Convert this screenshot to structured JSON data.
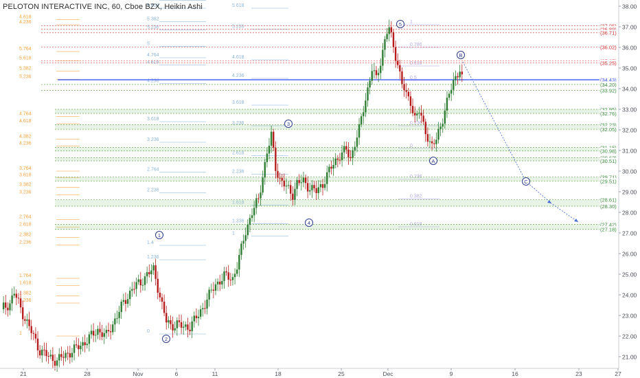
{
  "header": {
    "title": "PELOTON INTERACTIVE INC, 60, Cboe BZX, Heikin Ashi"
  },
  "colors": {
    "up": "#2e7d32",
    "down": "#b71c1c",
    "support": "#6aa84f",
    "resistance": "#e06666",
    "current": "#3d5afe",
    "projection": "#4a6fd4",
    "fib_orange": "#f6a13a",
    "fib_blue": "#8ab4d8"
  },
  "chart_data": {
    "type": "candlestick",
    "title": "PELOTON INTERACTIVE INC, 60, Cboe BZX, Heikin Ashi",
    "ylim": [
      20.5,
      38.3
    ],
    "y_ticks": [
      "21.00",
      "22.00",
      "23.00",
      "24.00",
      "25.00",
      "26.00",
      "27.00",
      "28.00",
      "29.00",
      "30.00",
      "31.00",
      "32.00",
      "33.00",
      "34.00",
      "35.00",
      "36.00",
      "37.00",
      "38.00"
    ],
    "x_ticks": [
      "21",
      "28",
      "Nov",
      "6",
      "11",
      "18",
      "25",
      "Dec",
      "9",
      "16",
      "23",
      "27"
    ],
    "price_path": [
      [
        0,
        23.3
      ],
      [
        4,
        23.6
      ],
      [
        6,
        24.1
      ],
      [
        10,
        23.1
      ],
      [
        14,
        22.2
      ],
      [
        18,
        21.3
      ],
      [
        22,
        21.0
      ],
      [
        26,
        20.8
      ],
      [
        30,
        21.1
      ],
      [
        35,
        21.4
      ],
      [
        40,
        21.8
      ],
      [
        45,
        22.3
      ],
      [
        49,
        22.0
      ],
      [
        53,
        22.8
      ],
      [
        57,
        23.6
      ],
      [
        61,
        24.3
      ],
      [
        65,
        24.6
      ],
      [
        68,
        25.0
      ],
      [
        71,
        25.2
      ],
      [
        73,
        24.4
      ],
      [
        75,
        23.5
      ],
      [
        77,
        22.7
      ],
      [
        79,
        22.5
      ],
      [
        82,
        22.6
      ],
      [
        85,
        22.4
      ],
      [
        88,
        22.5
      ],
      [
        92,
        23.0
      ],
      [
        96,
        23.8
      ],
      [
        100,
        24.5
      ],
      [
        104,
        24.9
      ],
      [
        108,
        24.8
      ],
      [
        110,
        25.4
      ],
      [
        112,
        26.2
      ],
      [
        114,
        27.1
      ],
      [
        117,
        28.0
      ],
      [
        120,
        28.6
      ],
      [
        122,
        29.8
      ],
      [
        124,
        30.9
      ],
      [
        126,
        31.7
      ],
      [
        128,
        30.2
      ],
      [
        130,
        29.6
      ],
      [
        133,
        29.2
      ],
      [
        136,
        28.9
      ],
      [
        138,
        29.4
      ],
      [
        141,
        29.5
      ],
      [
        144,
        29.2
      ],
      [
        147,
        29.0
      ],
      [
        150,
        29.4
      ],
      [
        153,
        30.0
      ],
      [
        156,
        30.5
      ],
      [
        158,
        30.8
      ],
      [
        161,
        31.0
      ],
      [
        163,
        30.6
      ],
      [
        165,
        31.4
      ],
      [
        167,
        32.0
      ],
      [
        169,
        33.0
      ],
      [
        171,
        34.0
      ],
      [
        173,
        35.0
      ],
      [
        175,
        34.4
      ],
      [
        177,
        35.3
      ],
      [
        179,
        36.4
      ],
      [
        180,
        36.8
      ],
      [
        181,
        36.9
      ],
      [
        183,
        36.0
      ],
      [
        185,
        35.2
      ],
      [
        187,
        34.3
      ],
      [
        189,
        33.6
      ],
      [
        191,
        33.4
      ],
      [
        193,
        32.6
      ],
      [
        195,
        32.9
      ],
      [
        197,
        32.2
      ],
      [
        199,
        31.7
      ],
      [
        200,
        31.4
      ],
      [
        201,
        31.2
      ],
      [
        203,
        31.5
      ],
      [
        205,
        32.2
      ],
      [
        207,
        33.0
      ],
      [
        209,
        33.7
      ],
      [
        211,
        34.3
      ],
      [
        213,
        34.8
      ],
      [
        214,
        35.0
      ],
      [
        215,
        34.5
      ]
    ],
    "waves": [
      {
        "label": "1"
      },
      {
        "label": "2"
      },
      {
        "label": "3"
      },
      {
        "label": "4"
      },
      {
        "label": "5"
      },
      {
        "label": "A"
      },
      {
        "label": "B"
      },
      {
        "label": "C"
      }
    ],
    "zones": [
      {
        "top": 33.0,
        "bottom": 32.8,
        "label_top": "(32.95)",
        "label_bottom": "(32.76)",
        "kind": "support"
      },
      {
        "top": 32.25,
        "bottom": 32.03,
        "label_top": "(32.23)",
        "label_bottom": "(32.05)",
        "kind": "support"
      },
      {
        "top": 31.15,
        "bottom": 30.98,
        "label_top": "(31.15)",
        "label_bottom": "(30.98)",
        "kind": "support"
      },
      {
        "top": 30.65,
        "bottom": 30.5,
        "label_top": "(30.62)",
        "label_bottom": "(30.51)",
        "kind": "support"
      },
      {
        "top": 29.71,
        "bottom": 29.51,
        "label_top": "(29.71)",
        "label_bottom": "(29.51)",
        "kind": "support"
      },
      {
        "top": 28.61,
        "bottom": 28.3,
        "label_top": "(28.61)",
        "label_bottom": "(28.30)",
        "kind": "support"
      },
      {
        "top": 27.42,
        "bottom": 27.18,
        "label_top": "(27.42)",
        "label_bottom": "(27.18)",
        "kind": "support"
      }
    ],
    "lines": [
      {
        "value": 37.05,
        "label": "(37.05)",
        "kind": "resistance"
      },
      {
        "value": 36.89,
        "label": "(36.89)",
        "kind": "resistance"
      },
      {
        "value": 36.71,
        "label": "(36.71)",
        "kind": "resistance"
      },
      {
        "value": 36.02,
        "label": "(36.02)",
        "kind": "resistance"
      },
      {
        "value": 35.35,
        "label": "(35.35)",
        "kind": "resistance"
      },
      {
        "value": 35.25,
        "label": "(35.25)",
        "kind": "resistance"
      },
      {
        "value": 34.43,
        "label": "(34.43)",
        "kind": "current"
      },
      {
        "value": 34.2,
        "label": "(34.20)",
        "kind": "support"
      },
      {
        "value": 33.92,
        "label": "(33.92)",
        "kind": "support"
      }
    ],
    "fib_orange": [
      {
        "value": 37.35,
        "label": "4.618"
      },
      {
        "value": 37.1,
        "label": "4.236"
      },
      {
        "value": 35.8,
        "label": "5.764"
      },
      {
        "value": 35.35,
        "label": "5.618"
      },
      {
        "value": 34.85,
        "label": "5.382"
      },
      {
        "value": 34.45,
        "label": "5.236"
      },
      {
        "value": 32.65,
        "label": "4.764"
      },
      {
        "value": 32.3,
        "label": "4.618"
      },
      {
        "value": 31.55,
        "label": "4.382"
      },
      {
        "value": 31.22,
        "label": "4.236"
      },
      {
        "value": 30.0,
        "label": "3.764"
      },
      {
        "value": 29.68,
        "label": "3.618"
      },
      {
        "value": 29.21,
        "label": "3.382"
      },
      {
        "value": 28.85,
        "label": "3.236"
      },
      {
        "value": 27.65,
        "label": "2.764"
      },
      {
        "value": 27.28,
        "label": "2.618"
      },
      {
        "value": 26.78,
        "label": "2.382"
      },
      {
        "value": 26.42,
        "label": "2.236"
      },
      {
        "value": 24.8,
        "label": "1.764"
      },
      {
        "value": 24.45,
        "label": "1.618"
      },
      {
        "value": 23.95,
        "label": "1.382"
      },
      {
        "value": 23.6,
        "label": "1.236"
      },
      {
        "value": 22.0,
        "label": "1"
      }
    ],
    "fib_blue_left": [
      {
        "value": 38.28,
        "label": "5.764"
      },
      {
        "value": 37.9,
        "label": "5.618"
      },
      {
        "value": 37.25,
        "label": "5.382"
      },
      {
        "value": 36.85,
        "label": "5.236"
      },
      {
        "value": 36.05,
        "label": "5"
      },
      {
        "value": 35.5,
        "label": "4.764"
      },
      {
        "value": 35.15,
        "label": "4.618"
      },
      {
        "value": 34.25,
        "label": "4.236"
      },
      {
        "value": 32.4,
        "label": "3.618"
      },
      {
        "value": 31.4,
        "label": "3.236"
      },
      {
        "value": 29.95,
        "label": "2.764"
      },
      {
        "value": 28.95,
        "label": "2.236"
      },
      {
        "value": 26.4,
        "label": "1.4"
      },
      {
        "value": 25.7,
        "label": "1.236"
      },
      {
        "value": 22.1,
        "label": "0"
      }
    ],
    "fib_blue_mid": [
      {
        "value": 37.9,
        "label": "5.618"
      },
      {
        "value": 36.88,
        "label": "5.236"
      },
      {
        "value": 35.4,
        "label": "4.618"
      },
      {
        "value": 34.5,
        "label": "4.236"
      },
      {
        "value": 33.2,
        "label": "3.618"
      },
      {
        "value": 32.2,
        "label": "3.236"
      },
      {
        "value": 30.75,
        "label": "2.618"
      },
      {
        "value": 29.85,
        "label": "2.236"
      },
      {
        "value": 28.35,
        "label": "1.618"
      },
      {
        "value": 27.45,
        "label": "1.236"
      },
      {
        "value": 26.85,
        "label": "1"
      }
    ],
    "fib_retrace": [
      {
        "value": 37.1,
        "label": "1"
      },
      {
        "value": 36.0,
        "label": "0.786"
      },
      {
        "value": 35.1,
        "label": "0.618"
      },
      {
        "value": 34.4,
        "label": "0.5"
      },
      {
        "value": 32.2,
        "label": "0.236"
      },
      {
        "value": 31.1,
        "label": "0"
      },
      {
        "value": 29.6,
        "label": "0.236"
      },
      {
        "value": 28.65,
        "label": "0.382"
      },
      {
        "value": 27.3,
        "label": "0.618"
      }
    ]
  }
}
